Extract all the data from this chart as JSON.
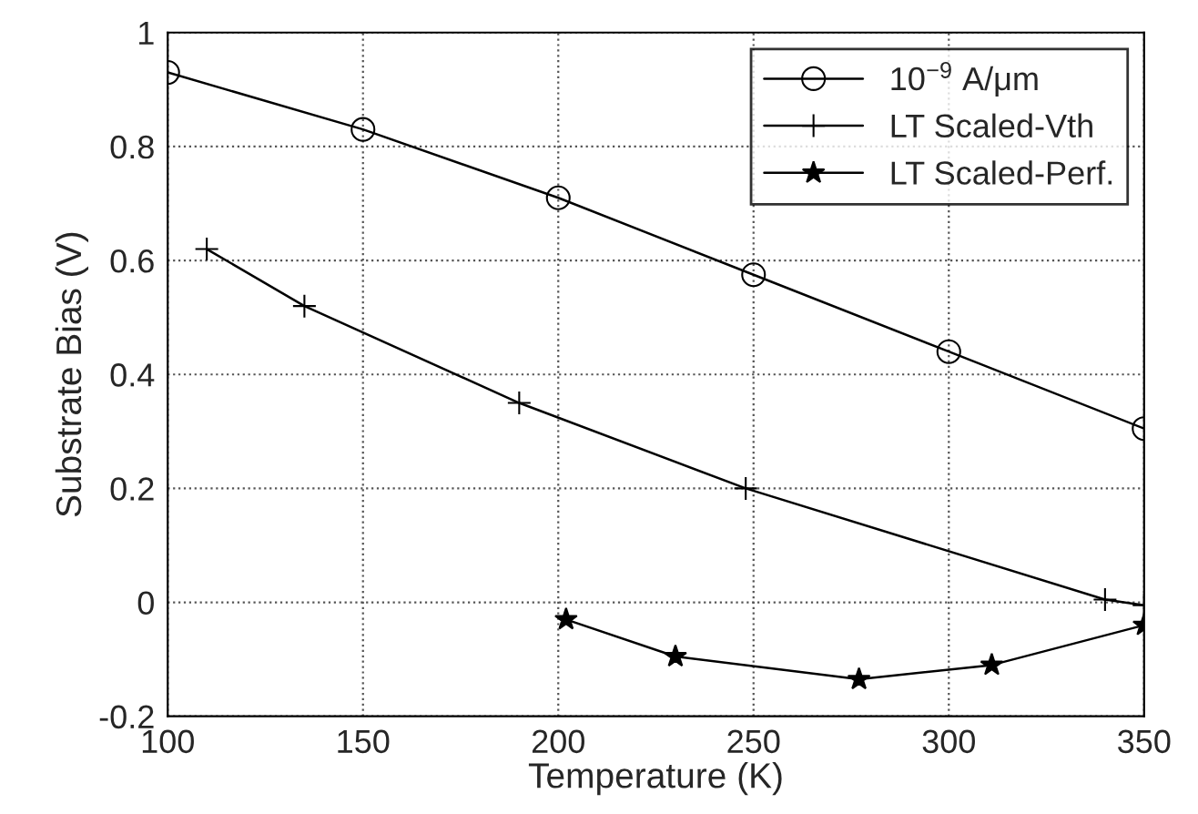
{
  "chart_data": {
    "type": "line",
    "xlabel": "Temperature (K)",
    "ylabel": "Substrate Bias (V)",
    "xlim": [
      100,
      350
    ],
    "xticks": [
      100,
      150,
      200,
      250,
      300,
      350
    ],
    "ylim": [
      -0.2,
      1
    ],
    "yticks": [
      -0.2,
      0,
      0.2,
      0.4,
      0.6,
      0.8,
      1
    ],
    "grid": true,
    "legend": "top right",
    "series": [
      {
        "name": "10$^{−9}$ A/μm",
        "color": "#000000",
        "marker": "circle",
        "x": [
          100,
          150,
          200,
          250,
          300,
          350
        ],
        "values": [
          0.93,
          0.83,
          0.71,
          0.575,
          0.44,
          0.305
        ]
      },
      {
        "name": "LT Scaled-Vth",
        "color": "#000000",
        "marker": "cross",
        "x": [
          110,
          135,
          190,
          248,
          340,
          350
        ],
        "values": [
          0.62,
          0.52,
          0.35,
          0.2,
          0.005,
          -0.005
        ]
      },
      {
        "name": "LT Scaled-Perf.",
        "color": "#000000",
        "marker": "star",
        "x": [
          202,
          230,
          277,
          311,
          350
        ],
        "values": [
          -0.03,
          -0.095,
          -0.135,
          -0.11,
          -0.04
        ]
      }
    ]
  }
}
